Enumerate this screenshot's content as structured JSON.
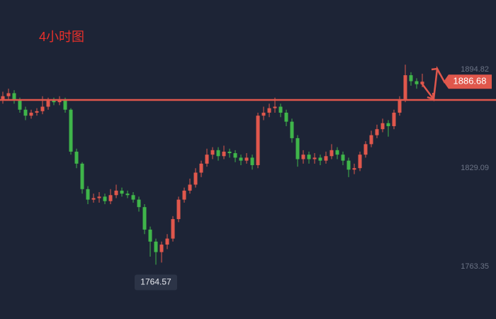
{
  "chart_data": {
    "type": "candlestick",
    "title": "4小时图",
    "open": [
      1875,
      1877,
      1879,
      1874,
      1868,
      1864,
      1866,
      1867,
      1870,
      1874,
      1873,
      1875,
      1868,
      1840,
      1832,
      1815,
      1808,
      1809,
      1810,
      1807,
      1811,
      1814,
      1812,
      1811,
      1808,
      1803,
      1788,
      1780,
      1773,
      1778,
      1782,
      1795,
      1808,
      1814,
      1818,
      1826,
      1832,
      1838,
      1841,
      1837,
      1840,
      1839,
      1836,
      1834,
      1836,
      1831,
      1864,
      1866,
      1869,
      1870,
      1866,
      1860,
      1849,
      1835,
      1838,
      1835,
      1836,
      1834,
      1837,
      1841,
      1838,
      1834,
      1828,
      1829,
      1838,
      1845,
      1851,
      1855,
      1859,
      1857,
      1866,
      1875,
      1891,
      1887,
      1885
    ],
    "high": [
      1880,
      1882,
      1881,
      1876,
      1870,
      1868,
      1869,
      1877,
      1876,
      1876,
      1877,
      1876,
      1869,
      1842,
      1833,
      1817,
      1812,
      1813,
      1812,
      1815,
      1818,
      1816,
      1814,
      1813,
      1810,
      1805,
      1790,
      1782,
      1780,
      1785,
      1797,
      1810,
      1816,
      1822,
      1829,
      1834,
      1842,
      1843,
      1843,
      1844,
      1842,
      1841,
      1838,
      1839,
      1838,
      1866,
      1870,
      1872,
      1876,
      1872,
      1868,
      1862,
      1851,
      1841,
      1840,
      1839,
      1838,
      1840,
      1845,
      1843,
      1840,
      1836,
      1832,
      1840,
      1847,
      1854,
      1858,
      1862,
      1861,
      1868,
      1877,
      1898,
      1893,
      1889,
      1892
    ],
    "low": [
      1872,
      1875,
      1872,
      1866,
      1861,
      1862,
      1864,
      1865,
      1868,
      1871,
      1871,
      1866,
      1838,
      1829,
      1812,
      1805,
      1806,
      1806,
      1805,
      1805,
      1809,
      1810,
      1809,
      1806,
      1800,
      1785,
      1770,
      1764.57,
      1766,
      1775,
      1780,
      1793,
      1806,
      1812,
      1816,
      1823,
      1830,
      1835,
      1834,
      1835,
      1836,
      1833,
      1831,
      1832,
      1828,
      1829,
      1861,
      1863,
      1866,
      1863,
      1857,
      1846,
      1830,
      1832,
      1832,
      1832,
      1831,
      1832,
      1835,
      1835,
      1831,
      1823,
      1825,
      1827,
      1836,
      1843,
      1849,
      1853,
      1850,
      1855,
      1864,
      1873,
      1884,
      1882,
      1883
    ],
    "close": [
      1877,
      1879,
      1874,
      1868,
      1864,
      1866,
      1867,
      1870,
      1874,
      1873,
      1875,
      1868,
      1840,
      1832,
      1815,
      1808,
      1809,
      1810,
      1807,
      1811,
      1814,
      1812,
      1811,
      1808,
      1803,
      1788,
      1780,
      1773,
      1778,
      1782,
      1795,
      1808,
      1814,
      1818,
      1826,
      1832,
      1838,
      1841,
      1837,
      1840,
      1839,
      1836,
      1834,
      1836,
      1831,
      1864,
      1866,
      1869,
      1870,
      1866,
      1860,
      1849,
      1835,
      1838,
      1835,
      1836,
      1834,
      1837,
      1841,
      1838,
      1834,
      1828,
      1829,
      1838,
      1845,
      1851,
      1855,
      1859,
      1857,
      1866,
      1875,
      1891,
      1887,
      1885,
      1886.68
    ],
    "up_color": "#e0574c",
    "down_color": "#3fb54a",
    "level": 1874.5,
    "level_color": "#e0574c",
    "ylim": [
      1728.36,
      1941.17
    ],
    "yticks": [
      1763.35,
      1829.09,
      1894.82
    ]
  }
}
